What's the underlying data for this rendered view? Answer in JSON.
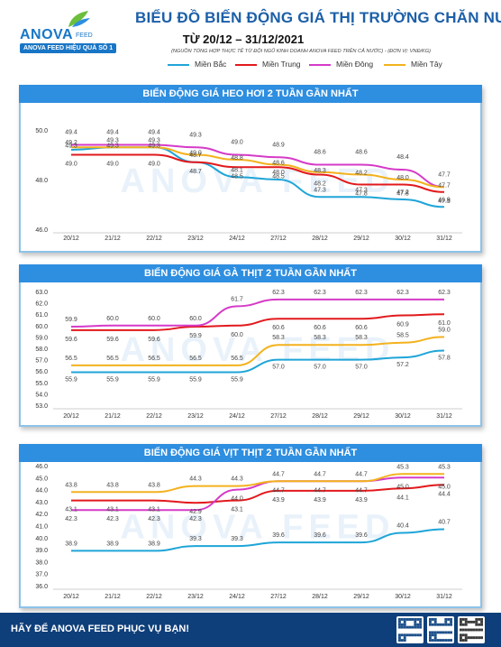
{
  "header": {
    "logo_brand": "ANOVA",
    "logo_brand_sub": "FEED",
    "logo_tagline": "ANOVA FEED HIỆU QUẢ SỐ 1",
    "title": "BIỂU ĐỒ BIẾN ĐỘNG GIÁ THỊ TRƯỜNG CHĂN NUÔI",
    "date_range": "TỪ 20/12 – 31/12/2021",
    "source_note": "(NGUỒN TỔNG HỢP THỰC TẾ TỪ ĐỘI NGŨ KINH DOANH ANOVA FEED TRÊN CẢ NƯỚC)   -   (ĐƠN VỊ: VNĐ/KG)"
  },
  "legend": [
    {
      "name": "Miền Bắc",
      "color": "#1fa5d8"
    },
    {
      "name": "Miền Trung",
      "color": "#e2191d"
    },
    {
      "name": "Miền Đông",
      "color": "#d53bc8"
    },
    {
      "name": "Miền Tây",
      "color": "#f3b21e"
    }
  ],
  "watermark": "ANOVA FEED",
  "chart_data": [
    {
      "type": "line",
      "title": "BIẾN ĐỘNG GIÁ HEO HƠI 2 TUẦN GẦN NHẤT",
      "x": [
        "20/12",
        "21/12",
        "22/12",
        "23/12",
        "24/12",
        "27/12",
        "28/12",
        "29/12",
        "30/12",
        "31/12"
      ],
      "ylim": [
        46.0,
        50.0
      ],
      "yticks": [
        "50.0",
        "48.0",
        "46.0"
      ],
      "grid": false,
      "series": [
        {
          "name": "Miền Bắc",
          "values": [
            49.2,
            49.3,
            49.3,
            48.7,
            48.1,
            48.0,
            47.3,
            47.3,
            47.2,
            46.9
          ]
        },
        {
          "name": "Miền Trung",
          "values": [
            49.0,
            49.0,
            49.0,
            48.7,
            48.5,
            48.5,
            48.2,
            47.8,
            47.8,
            47.5
          ]
        },
        {
          "name": "Miền Đông",
          "values": [
            49.4,
            49.4,
            49.4,
            49.3,
            49.0,
            48.9,
            48.6,
            48.6,
            48.4,
            47.7
          ]
        },
        {
          "name": "Miền Tây",
          "values": [
            49.3,
            49.3,
            49.3,
            49.0,
            48.8,
            48.6,
            48.3,
            48.2,
            48.0,
            47.7
          ]
        }
      ],
      "labels": [
        [
          "49.2",
          "49.3",
          "49.3",
          "48.7",
          "48.1",
          "48.0",
          "47.3",
          "47.3",
          "47.2",
          "46.9"
        ],
        [
          "49.0",
          "49.0",
          "49.0",
          "48.7",
          "48.5",
          "48.5",
          "48.2",
          "47.8",
          "47.8",
          "47.5"
        ],
        [
          "49.4",
          "49.4",
          "49.4",
          "49.3",
          "49.0",
          "48.9",
          "48.6",
          "48.6",
          "48.4",
          "47.7"
        ],
        [
          "49.3",
          "49.3",
          "49.3",
          "49.0",
          "48.8",
          "48.6",
          "48.3",
          "48.2",
          "48.0",
          "47.7"
        ]
      ]
    },
    {
      "type": "line",
      "title": "BIẾN ĐỘNG GIÁ GÀ THỊT 2 TUẦN GẦN NHẤT",
      "x": [
        "20/12",
        "21/12",
        "22/12",
        "23/12",
        "24/12",
        "27/12",
        "28/12",
        "29/12",
        "30/12",
        "31/12"
      ],
      "ylim": [
        53.0,
        63.0
      ],
      "yticks": [
        "63.0",
        "62.0",
        "61.0",
        "60.0",
        "59.0",
        "58.0",
        "57.0",
        "56.0",
        "55.0",
        "54.0",
        "53.0"
      ],
      "grid": false,
      "series": [
        {
          "name": "Miền Bắc",
          "values": [
            55.9,
            55.9,
            55.9,
            55.9,
            55.9,
            57.0,
            57.0,
            57.0,
            57.2,
            57.8
          ]
        },
        {
          "name": "Miền Trung",
          "values": [
            59.6,
            59.6,
            59.6,
            59.9,
            60.0,
            60.6,
            60.6,
            60.6,
            60.9,
            61.0
          ]
        },
        {
          "name": "Miền Đông",
          "values": [
            59.9,
            60.0,
            60.0,
            60.0,
            61.7,
            62.3,
            62.3,
            62.3,
            62.3,
            62.3
          ]
        },
        {
          "name": "Miền Tây",
          "values": [
            56.5,
            56.5,
            56.5,
            56.5,
            56.5,
            58.3,
            58.3,
            58.3,
            58.5,
            59.0
          ]
        }
      ],
      "labels": [
        [
          "55.9",
          "55.9",
          "55.9",
          "55.9",
          "55.9",
          "57.0",
          "57.0",
          "57.0",
          "57.2",
          "57.8"
        ],
        [
          "59.6",
          "59.6",
          "59.6",
          "59.9",
          "60.0",
          "60.6",
          "60.6",
          "60.6",
          "60.9",
          "61.0"
        ],
        [
          "59.9",
          "60.0",
          "60.0",
          "60.0",
          "61.7",
          "62.3",
          "62.3",
          "62.3",
          "62.3",
          "62.3"
        ],
        [
          "56.5",
          "56.5",
          "56.5",
          "56.5",
          "56.5",
          "58.3",
          "58.3",
          "58.3",
          "58.5",
          "59.0"
        ]
      ]
    },
    {
      "type": "line",
      "title": "BIẾN ĐỘNG GIÁ VỊT THỊT 2 TUẦN GẦN NHẤT",
      "x": [
        "20/12",
        "21/12",
        "22/12",
        "23/12",
        "24/12",
        "27/12",
        "28/12",
        "29/12",
        "30/12",
        "31/12"
      ],
      "ylim": [
        36.0,
        46.0
      ],
      "yticks": [
        "46.0",
        "45.0",
        "44.0",
        "43.0",
        "42.0",
        "41.0",
        "40.0",
        "39.0",
        "38.0",
        "37.0",
        "36.0"
      ],
      "grid": false,
      "series": [
        {
          "name": "Miền Bắc",
          "values": [
            38.9,
            38.9,
            38.9,
            39.3,
            39.3,
            39.6,
            39.6,
            39.6,
            40.4,
            40.7
          ]
        },
        {
          "name": "Miền Trung",
          "values": [
            43.1,
            43.1,
            43.1,
            42.9,
            43.1,
            43.9,
            43.9,
            43.9,
            44.1,
            44.4
          ]
        },
        {
          "name": "Miền Đông",
          "values": [
            42.3,
            42.3,
            42.3,
            42.3,
            44.0,
            44.7,
            44.7,
            44.7,
            45.0,
            45.0
          ]
        },
        {
          "name": "Miền Tây",
          "values": [
            43.8,
            43.8,
            43.8,
            44.3,
            44.3,
            44.7,
            44.7,
            44.7,
            45.3,
            45.3
          ]
        }
      ],
      "labels": [
        [
          "38.9",
          "38.9",
          "38.9",
          "39.3",
          "39.3",
          "39.6",
          "39.6",
          "39.6",
          "40.4",
          "40.7"
        ],
        [
          "43.1",
          "43.1",
          "43.1",
          "42.9",
          "43.1",
          "43.9",
          "43.9",
          "43.9",
          "44.1",
          "44.4"
        ],
        [
          "42.3",
          "42.3",
          "42.3",
          "42.3",
          "44.0",
          "44.7",
          "44.7",
          "44.7",
          "45.0",
          "45.0"
        ],
        [
          "43.8",
          "43.8",
          "43.8",
          "44.3",
          "44.3",
          "44.7",
          "44.7",
          "44.7",
          "45.3",
          "45.3"
        ]
      ]
    }
  ],
  "footer": {
    "text": "HÃY ĐỂ ANOVA FEED PHỤC VỤ BẠN!",
    "qr_icons": [
      "qr-code-icon",
      "qr-code-icon",
      "qr-code-icon"
    ]
  }
}
